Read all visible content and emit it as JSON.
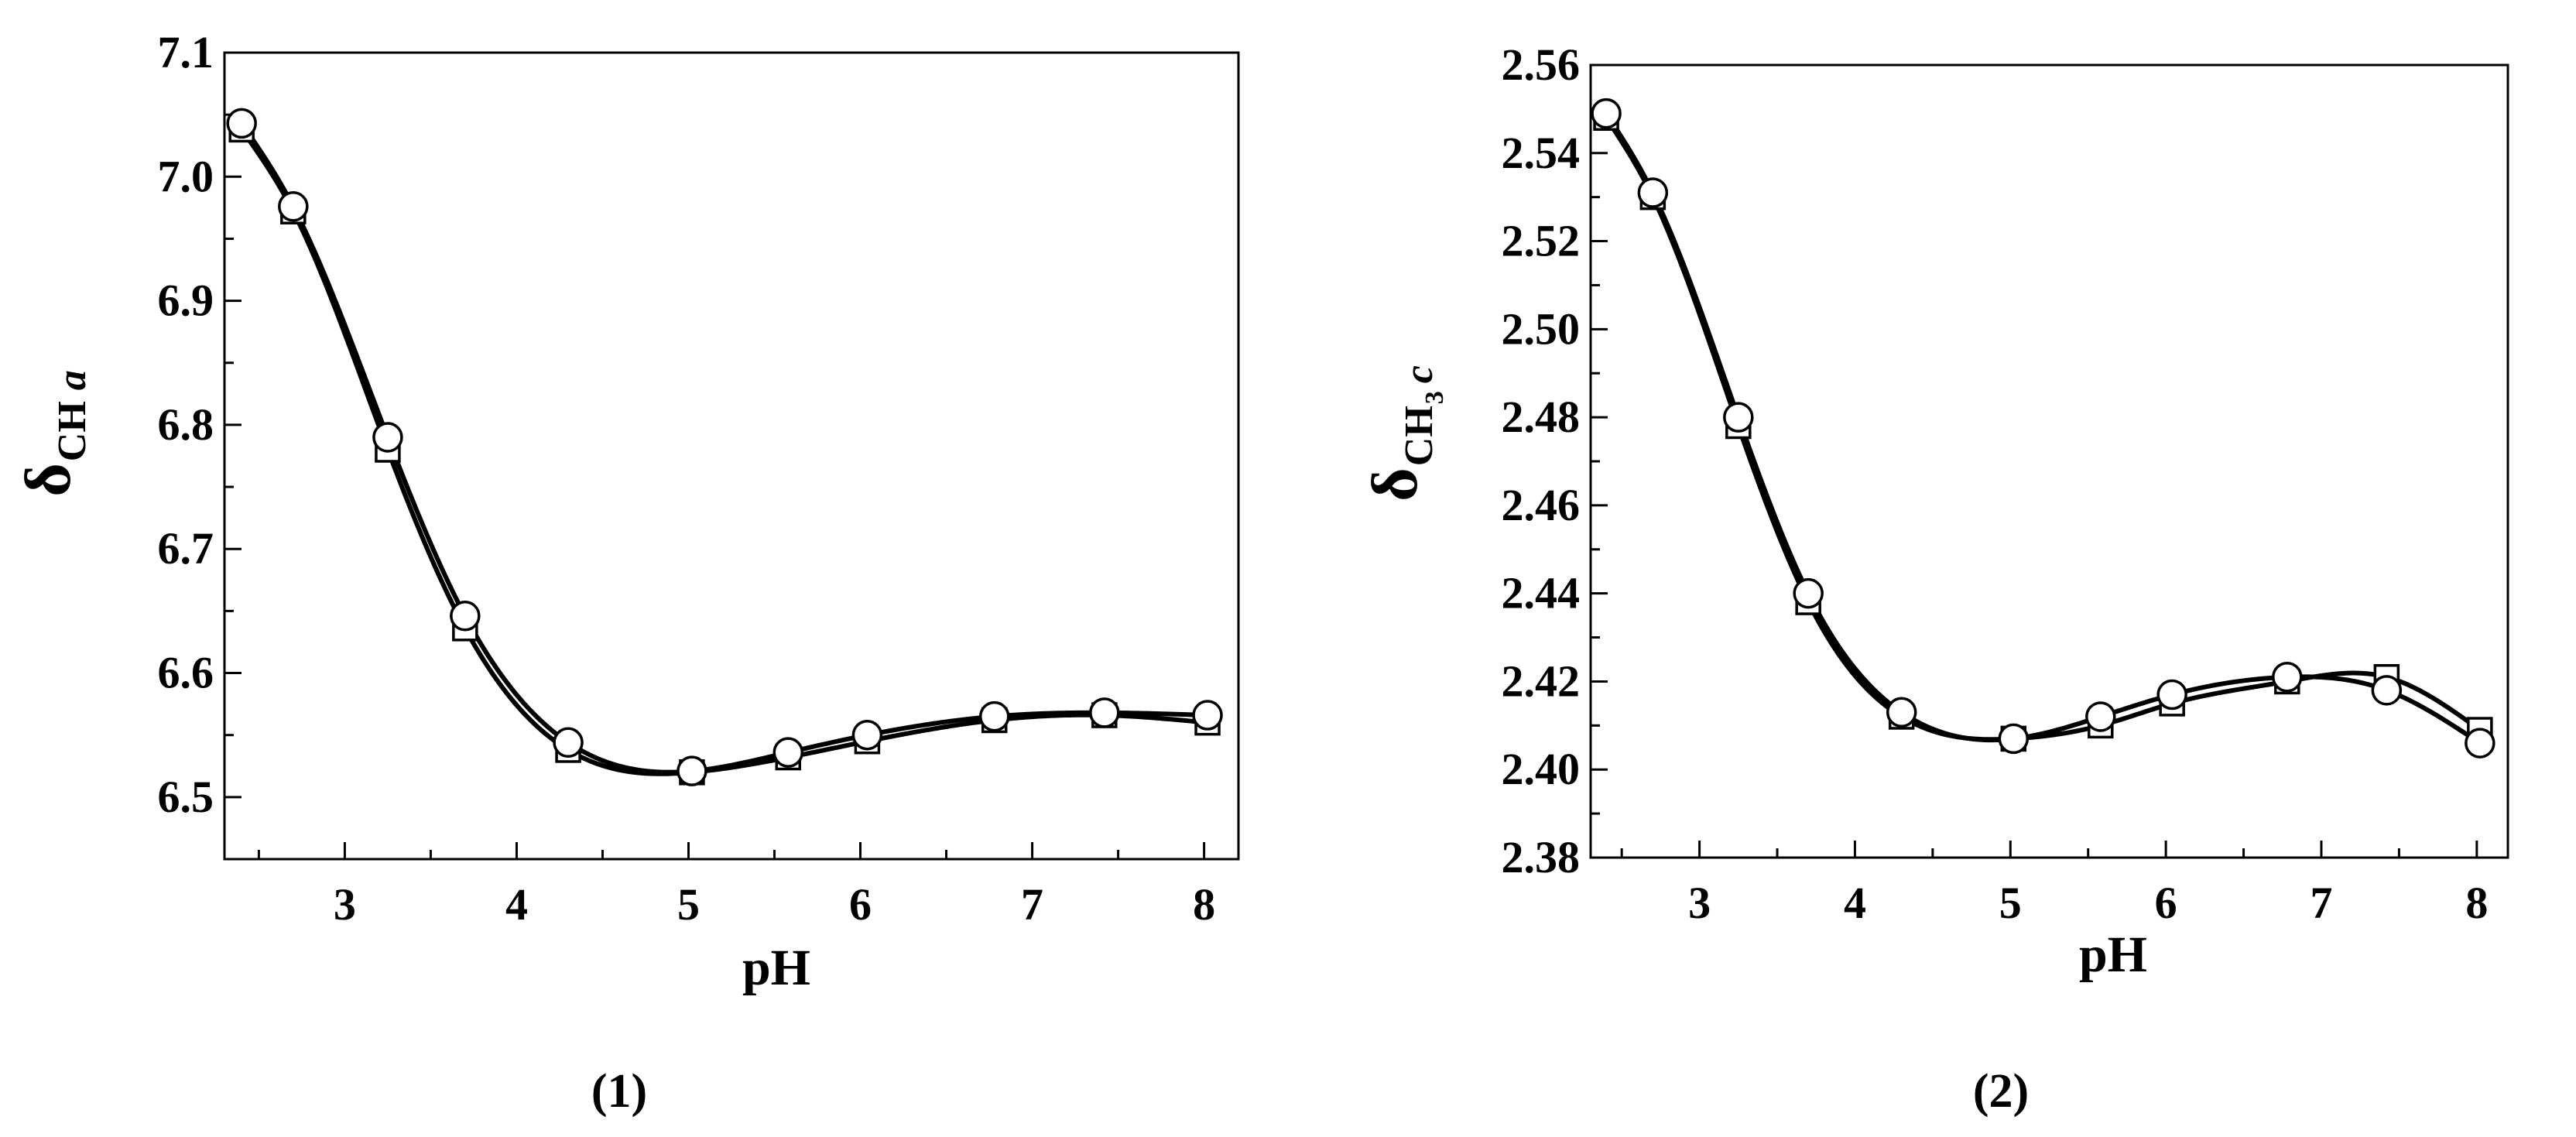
{
  "chart_data": [
    {
      "type": "line",
      "panel_label": "(1)",
      "xlabel": "pH",
      "ylabel": {
        "main": "δ",
        "sub": "CH",
        "italic": "a"
      },
      "xlim": [
        2.3,
        8.2
      ],
      "ylim": [
        6.45,
        7.1
      ],
      "xticks": [
        "3",
        "4",
        "5",
        "6",
        "7",
        "8"
      ],
      "xtick_values": [
        3,
        4,
        5,
        6,
        7,
        8
      ],
      "yticks": [
        "6.5",
        "6.6",
        "6.7",
        "6.8",
        "6.9",
        "7.0",
        "7.1"
      ],
      "ytick_values": [
        6.5,
        6.6,
        6.7,
        6.8,
        6.9,
        7.0,
        7.1
      ],
      "grid": false,
      "series": [
        {
          "marker": "square",
          "x": [
            2.4,
            2.7,
            3.25,
            3.7,
            4.3,
            5.02,
            5.58,
            6.04,
            6.78,
            7.42,
            8.02
          ],
          "y": [
            7.038,
            6.972,
            6.78,
            6.636,
            6.538,
            6.52,
            6.532,
            6.545,
            6.562,
            6.566,
            6.56
          ]
        },
        {
          "marker": "circle",
          "x": [
            2.4,
            2.7,
            3.25,
            3.7,
            4.3,
            5.02,
            5.58,
            6.04,
            6.78,
            7.42,
            8.02
          ],
          "y": [
            7.043,
            6.976,
            6.79,
            6.646,
            6.544,
            6.521,
            6.536,
            6.55,
            6.565,
            6.568,
            6.566
          ]
        }
      ]
    },
    {
      "type": "line",
      "panel_label": "(2)",
      "xlabel": "pH",
      "ylabel": {
        "main": "δ",
        "sub": "CH",
        "subsub": "3",
        "italic": "c"
      },
      "xlim": [
        2.3,
        8.2
      ],
      "ylim": [
        2.38,
        2.56
      ],
      "xticks": [
        "3",
        "4",
        "5",
        "6",
        "7",
        "8"
      ],
      "xtick_values": [
        3,
        4,
        5,
        6,
        7,
        8
      ],
      "yticks": [
        "2.38",
        "2.40",
        "2.42",
        "2.44",
        "2.46",
        "2.48",
        "2.50",
        "2.52",
        "2.54",
        "2.56"
      ],
      "ytick_values": [
        2.38,
        2.4,
        2.42,
        2.44,
        2.46,
        2.48,
        2.5,
        2.52,
        2.54,
        2.56
      ],
      "grid": false,
      "series": [
        {
          "marker": "square",
          "x": [
            2.4,
            2.7,
            3.25,
            3.7,
            4.3,
            5.02,
            5.58,
            6.04,
            6.78,
            7.42,
            8.02
          ],
          "y": [
            2.548,
            2.53,
            2.478,
            2.438,
            2.412,
            2.407,
            2.41,
            2.415,
            2.42,
            2.421,
            2.409
          ]
        },
        {
          "marker": "circle",
          "x": [
            2.4,
            2.7,
            3.25,
            3.7,
            4.3,
            5.02,
            5.58,
            6.04,
            6.78,
            7.42,
            8.02
          ],
          "y": [
            2.549,
            2.531,
            2.48,
            2.44,
            2.413,
            2.407,
            2.412,
            2.417,
            2.421,
            2.418,
            2.406
          ]
        }
      ]
    }
  ]
}
